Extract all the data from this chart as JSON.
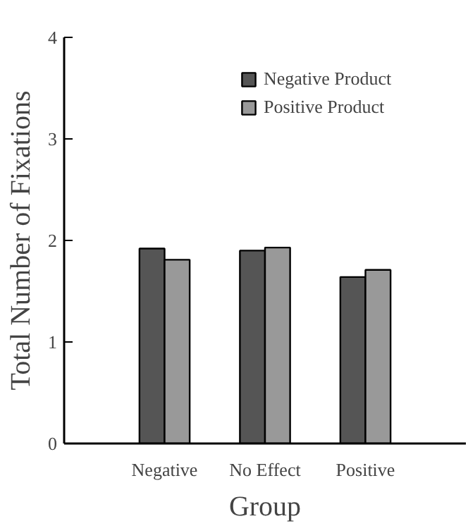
{
  "chart_data": {
    "type": "bar",
    "xlabel": "Group",
    "ylabel": "Total Number of Fixations",
    "categories": [
      "Negative",
      "No Effect",
      "Positive"
    ],
    "series": [
      {
        "name": "Negative Product",
        "color": "#555555",
        "values": [
          1.92,
          1.9,
          1.64
        ]
      },
      {
        "name": "Positive Product",
        "color": "#999999",
        "values": [
          1.81,
          1.93,
          1.71
        ]
      }
    ],
    "ylim": [
      0,
      4
    ],
    "yticks": [
      0,
      1,
      2,
      3,
      4
    ],
    "grid": false,
    "legend": "top"
  }
}
